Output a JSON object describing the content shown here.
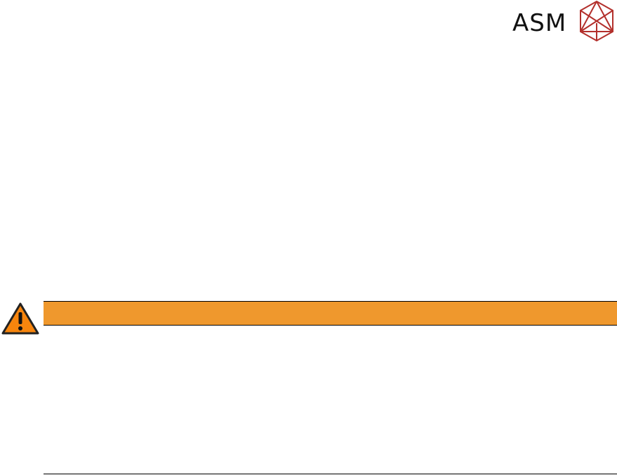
{
  "logo": {
    "text": "ASM",
    "color": "#b3302c"
  },
  "warning": {
    "icon": "warning-triangle-icon",
    "banner_color": "#ef982d",
    "icon_color": "#f7850d"
  }
}
